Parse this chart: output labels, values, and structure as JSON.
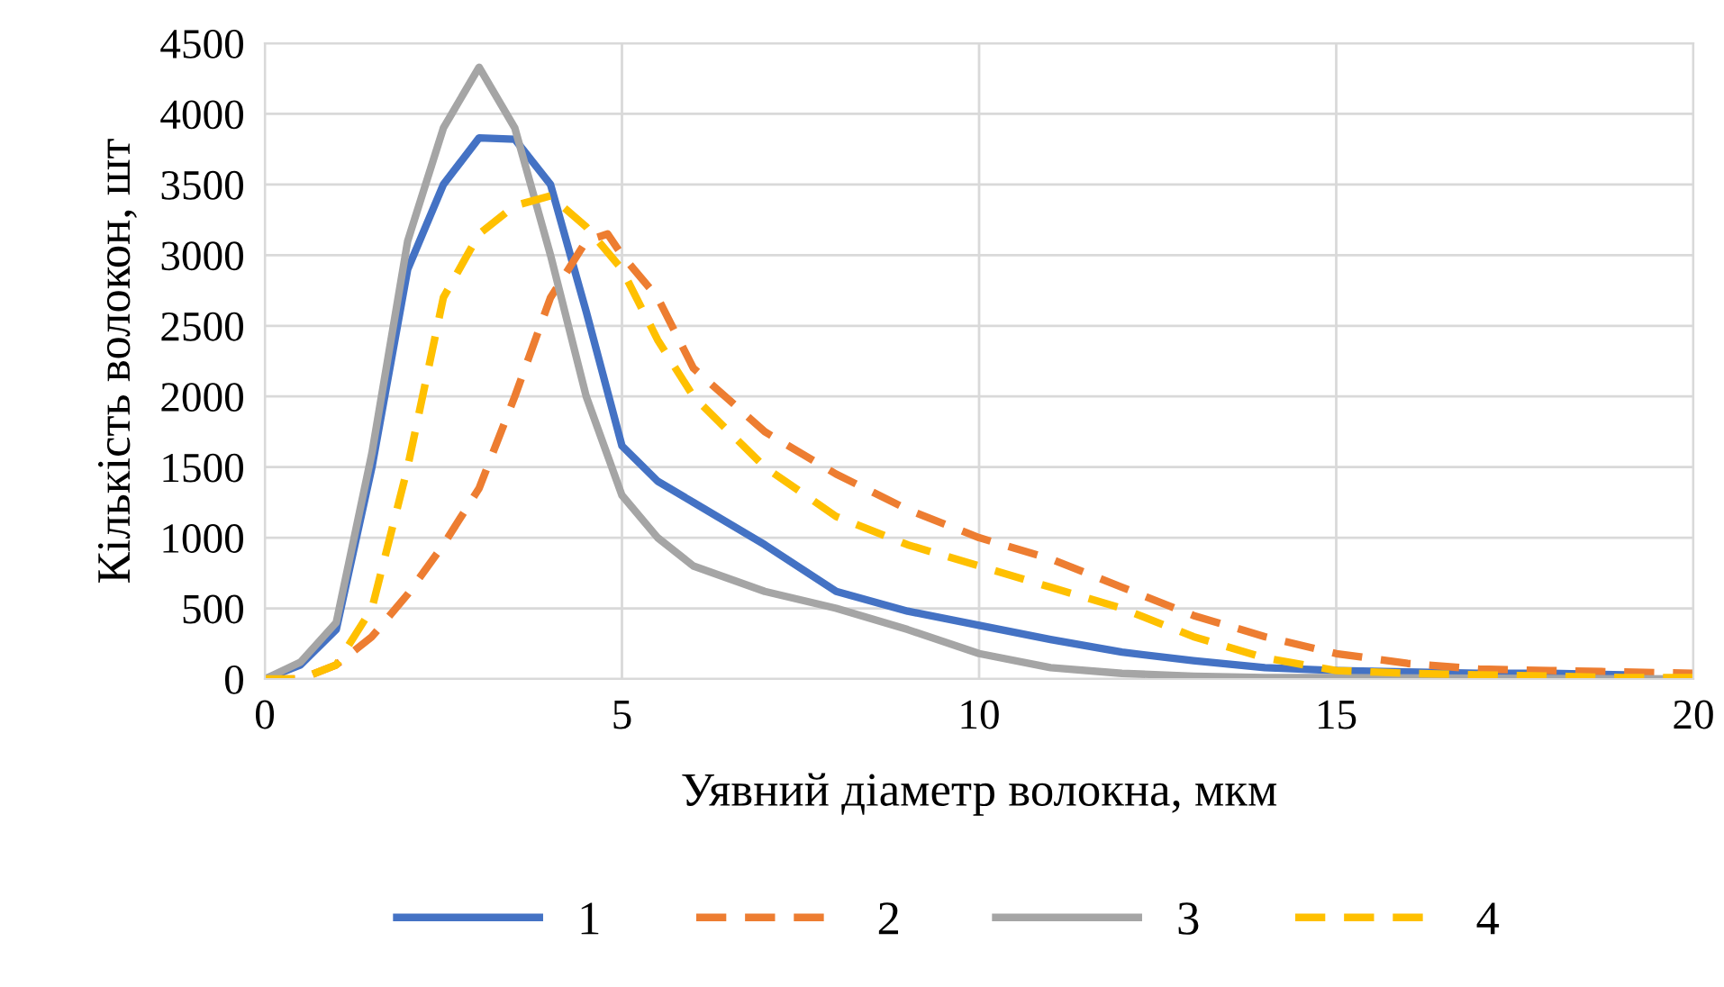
{
  "chart_data": {
    "type": "line",
    "xlabel": "Уявний діаметр волокна, мкм",
    "ylabel": "Кількість волокон, шт",
    "xlim": [
      0,
      20
    ],
    "xticks": [
      0,
      5,
      10,
      15,
      20
    ],
    "ylim": [
      0,
      4500
    ],
    "yticks": [
      0,
      500,
      1000,
      1500,
      2000,
      2500,
      3000,
      3500,
      4000,
      4500
    ],
    "grid": true,
    "legend": "bottom",
    "series": [
      {
        "name": "1",
        "color": "#4472c4",
        "line_style": "solid",
        "x": [
          0,
          0.5,
          1,
          1.5,
          2,
          2.5,
          3,
          3.5,
          4,
          4.5,
          5,
          5.5,
          6,
          7,
          8,
          9,
          10,
          11,
          12,
          13,
          14,
          15,
          16,
          17,
          18,
          19
        ],
        "values": [
          0,
          100,
          350,
          1500,
          2900,
          3500,
          3830,
          3820,
          3500,
          2600,
          1650,
          1400,
          1250,
          950,
          620,
          480,
          380,
          280,
          190,
          130,
          80,
          60,
          50,
          40,
          40,
          30
        ]
      },
      {
        "name": "2",
        "color": "#ed7d31",
        "line_style": "dashed",
        "x": [
          0,
          0.5,
          1,
          1.5,
          2,
          2.5,
          3,
          3.5,
          4,
          4.5,
          4.8,
          5,
          5.5,
          6,
          7,
          8,
          9,
          10,
          11,
          12,
          13,
          14,
          15,
          16,
          17,
          18,
          19,
          20
        ],
        "values": [
          0,
          0,
          100,
          300,
          600,
          950,
          1350,
          2000,
          2700,
          3100,
          3150,
          3000,
          2700,
          2200,
          1750,
          1450,
          1200,
          1000,
          850,
          650,
          450,
          300,
          180,
          110,
          70,
          60,
          50,
          40
        ]
      },
      {
        "name": "3",
        "color": "#a5a5a5",
        "line_style": "solid",
        "x": [
          0,
          0.5,
          1,
          1.5,
          2,
          2.5,
          3,
          3.5,
          4,
          4.5,
          5,
          5.5,
          6,
          7,
          8,
          9,
          10,
          11,
          12,
          13,
          14,
          15,
          20
        ],
        "values": [
          0,
          120,
          400,
          1600,
          3100,
          3900,
          4330,
          3900,
          3000,
          2000,
          1300,
          1000,
          800,
          620,
          500,
          350,
          180,
          80,
          40,
          20,
          10,
          10,
          0
        ]
      },
      {
        "name": "4",
        "color": "#ffc000",
        "line_style": "dashed",
        "x": [
          0,
          0.5,
          1,
          1.5,
          2,
          2.5,
          3,
          3.5,
          4,
          4.5,
          5,
          5.5,
          6,
          7,
          8,
          9,
          10,
          11,
          12,
          13,
          14,
          15,
          16,
          17,
          18,
          19,
          20
        ],
        "values": [
          0,
          0,
          100,
          500,
          1500,
          2700,
          3150,
          3350,
          3420,
          3200,
          2900,
          2400,
          2000,
          1500,
          1150,
          950,
          800,
          650,
          500,
          300,
          150,
          60,
          40,
          30,
          20,
          10,
          10
        ]
      }
    ]
  }
}
